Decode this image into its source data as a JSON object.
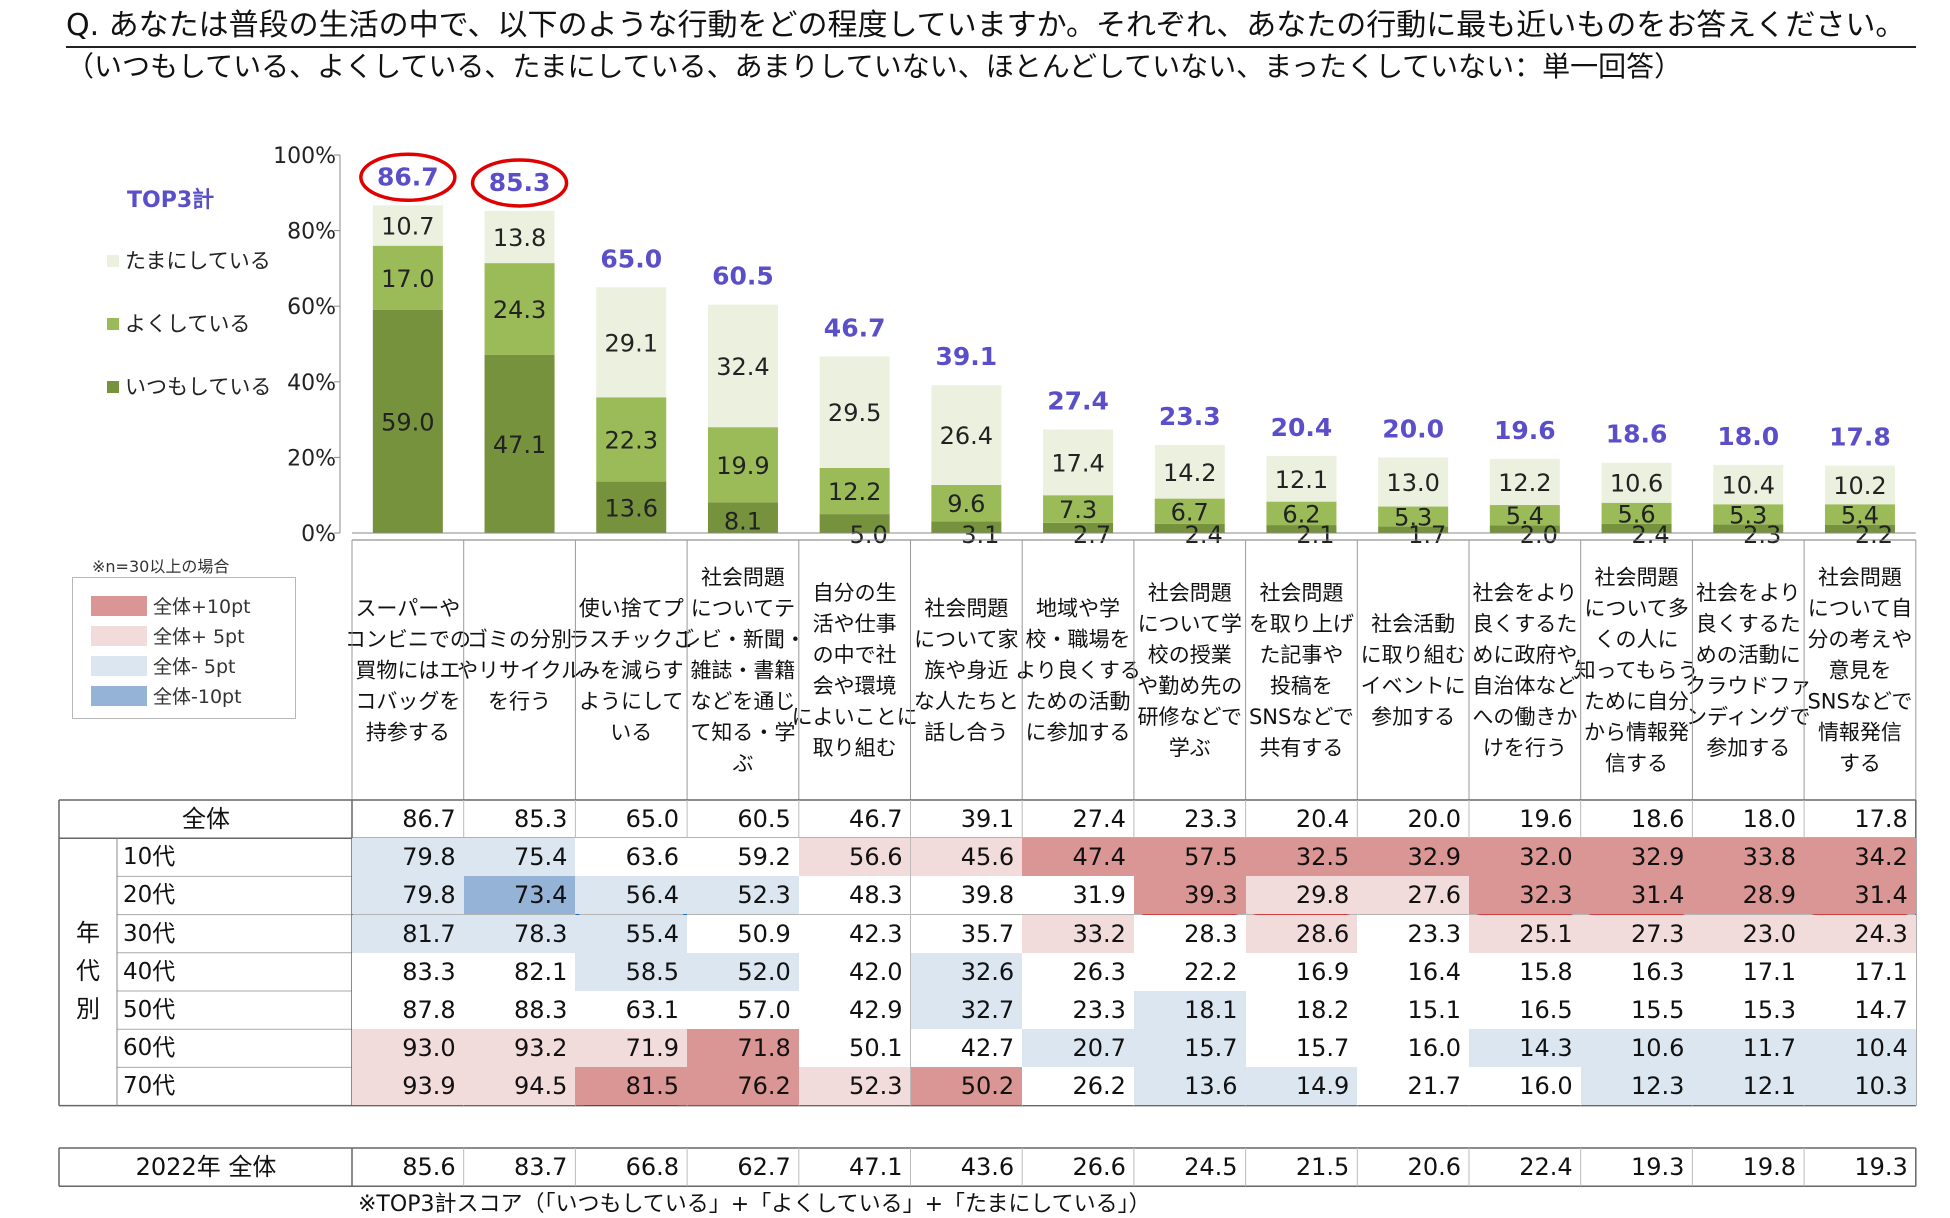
{
  "question": {
    "title": "Q. あなたは普段の生活の中で、以下のような行動をどの程度していますか。それぞれ、あなたの行動に最も近いものをお答えください。",
    "subtitle": "（いつもしている、よくしている、たまにしている、あまりしていない、ほとんどしていない、まったくしていない：単一回答）"
  },
  "legend": {
    "top3": "TOP3計",
    "items": [
      "たまにしている",
      "よくしている",
      "いつもしている"
    ]
  },
  "colors": {
    "always": "#76923c",
    "often": "#9bbb59",
    "sometimes": "#ebf1de",
    "top3_text": "#5b4fc9",
    "plus10": "#da9694",
    "plus5": "#f2dcdb",
    "minus5": "#dce6f1",
    "minus10": "#95b3d7",
    "highlight_red": "#e00000",
    "highlight_blue": "#1a6fc2"
  },
  "table_legend": {
    "note": "※n=30以上の場合",
    "items": [
      "全体+10pt",
      "全体+  5pt",
      "全体-  5pt",
      "全体-10pt"
    ]
  },
  "chart_data": {
    "type": "bar",
    "stacked": true,
    "ylim": [
      0,
      100
    ],
    "yticks": [
      "0%",
      "20%",
      "40%",
      "60%",
      "80%",
      "100%"
    ],
    "categories": [
      "スーパーやコンビニでの買物にはエコバッグを持参する",
      "ゴミの分別やリサイクルを行う",
      "使い捨てプラスチックごみを減らすようにしている",
      "社会問題についてテレビ・新聞・雑誌・書籍などを通じて知る・学ぶ",
      "自分の生活や仕事の中で社会や環境によいことに取り組む",
      "社会問題について家族や身近な人たちと話し合う",
      "地域や学校・職場をより良くするための活動に参加する",
      "社会問題について学校の授業や勤め先の研修などで学ぶ",
      "社会問題を取り上げた記事や投稿をSNSなどで共有する",
      "社会活動に取り組むイベントに参加する",
      "社会をより良くするために政府や自治体などへの働きかけを行う",
      "社会問題について多くの人に知ってもらうために自分から情報発信する",
      "社会をより良くするための活動にクラウドファンディングで参加する",
      "社会問題について自分の考えや意見をSNSなどで情報発信する"
    ],
    "category_lines": [
      [
        "スーパーや",
        "コンビニでの",
        "買物にはエ",
        "コバッグを",
        "持参する"
      ],
      [
        "ゴミの分別",
        "やリサイクル",
        "を行う"
      ],
      [
        "使い捨てプ",
        "ラスチックご",
        "みを減らす",
        "ようにして",
        "いる"
      ],
      [
        "社会問題",
        "についてテ",
        "レビ・新聞・",
        "雑誌・書籍",
        "などを通じ",
        "て知る・学",
        "ぶ"
      ],
      [
        "自分の生",
        "活や仕事",
        "の中で社",
        "会や環境",
        "によいことに",
        "取り組む"
      ],
      [
        "社会問題",
        "について家",
        "族や身近",
        "な人たちと",
        "話し合う"
      ],
      [
        "地域や学",
        "校・職場を",
        "より良くする",
        "ための活動",
        "に参加する"
      ],
      [
        "社会問題",
        "について学",
        "校の授業",
        "や勤め先の",
        "研修などで",
        "学ぶ"
      ],
      [
        "社会問題",
        "を取り上げ",
        "た記事や",
        "投稿を",
        "SNSなどで",
        "共有する"
      ],
      [
        "社会活動",
        "に取り組む",
        "イベントに",
        "参加する"
      ],
      [
        "社会をより",
        "良くするた",
        "めに政府や",
        "自治体など",
        "への働きか",
        "けを行う"
      ],
      [
        "社会問題",
        "について多",
        "くの人に",
        "知ってもらう",
        "ために自分",
        "から情報発",
        "信する"
      ],
      [
        "社会をより",
        "良くするた",
        "めの活動に",
        "クラウドファ",
        "ンディングで",
        "参加する"
      ],
      [
        "社会問題",
        "について自",
        "分の考えや",
        "意見を",
        "SNSなどで",
        "情報発信",
        "する"
      ]
    ],
    "series": [
      {
        "name": "いつもしている",
        "values": [
          59.0,
          47.1,
          13.6,
          8.1,
          5.0,
          3.1,
          2.7,
          2.4,
          2.1,
          1.7,
          2.0,
          2.4,
          2.3,
          2.2
        ]
      },
      {
        "name": "よくしている",
        "values": [
          17.0,
          24.3,
          22.3,
          19.9,
          12.2,
          9.6,
          7.3,
          6.7,
          6.2,
          5.3,
          5.4,
          5.6,
          5.3,
          5.4
        ]
      },
      {
        "name": "たまにしている",
        "values": [
          10.7,
          13.8,
          29.1,
          32.4,
          29.5,
          26.4,
          17.4,
          14.2,
          12.1,
          13.0,
          12.2,
          10.6,
          10.4,
          10.2
        ]
      }
    ],
    "top3": [
      "86.7",
      "85.3",
      "65.0",
      "60.5",
      "46.7",
      "39.1",
      "27.4",
      "23.3",
      "20.4",
      "20.0",
      "19.6",
      "18.6",
      "18.0",
      "17.8"
    ]
  },
  "table": {
    "overall_label": "全体",
    "group_label": "年代別",
    "overall": [
      "86.7",
      "85.3",
      "65.0",
      "60.5",
      "46.7",
      "39.1",
      "27.4",
      "23.3",
      "20.4",
      "20.0",
      "19.6",
      "18.6",
      "18.0",
      "17.8"
    ],
    "rows": [
      {
        "label": "10代",
        "values": [
          "79.8",
          "75.4",
          "63.6",
          "59.2",
          "56.6",
          "45.6",
          "47.4",
          "57.5",
          "32.5",
          "32.9",
          "32.0",
          "32.9",
          "33.8",
          "34.2"
        ],
        "shade": [
          "m5",
          "m5",
          "n",
          "n",
          "p5",
          "p5",
          "p10",
          "p10",
          "p10",
          "p10",
          "p10",
          "p10",
          "p10",
          "p10"
        ]
      },
      {
        "label": "20代",
        "values": [
          "79.8",
          "73.4",
          "56.4",
          "52.3",
          "48.3",
          "39.8",
          "31.9",
          "39.3",
          "29.8",
          "27.6",
          "32.3",
          "31.4",
          "28.9",
          "31.4"
        ],
        "shade": [
          "m5",
          "m10",
          "m5",
          "m5",
          "n",
          "n",
          "n",
          "p10",
          "p5",
          "p5",
          "p10",
          "p10",
          "p10",
          "p10"
        ]
      },
      {
        "label": "30代",
        "values": [
          "81.7",
          "78.3",
          "55.4",
          "50.9",
          "42.3",
          "35.7",
          "33.2",
          "28.3",
          "28.6",
          "23.3",
          "25.1",
          "27.3",
          "23.0",
          "24.3"
        ],
        "shade": [
          "m5",
          "m5",
          "m5",
          "n",
          "n",
          "n",
          "p5",
          "n",
          "p5",
          "n",
          "p5",
          "p5",
          "p5",
          "p5"
        ]
      },
      {
        "label": "40代",
        "values": [
          "83.3",
          "82.1",
          "58.5",
          "52.0",
          "42.0",
          "32.6",
          "26.3",
          "22.2",
          "16.9",
          "16.4",
          "15.8",
          "16.3",
          "17.1",
          "17.1"
        ],
        "shade": [
          "n",
          "n",
          "m5",
          "m5",
          "n",
          "m5",
          "n",
          "n",
          "n",
          "n",
          "n",
          "n",
          "n",
          "n"
        ]
      },
      {
        "label": "50代",
        "values": [
          "87.8",
          "88.3",
          "63.1",
          "57.0",
          "42.9",
          "32.7",
          "23.3",
          "18.1",
          "18.2",
          "15.1",
          "16.5",
          "15.5",
          "15.3",
          "14.7"
        ],
        "shade": [
          "n",
          "n",
          "n",
          "n",
          "n",
          "m5",
          "n",
          "m5",
          "n",
          "n",
          "n",
          "n",
          "n",
          "n"
        ]
      },
      {
        "label": "60代",
        "values": [
          "93.0",
          "93.2",
          "71.9",
          "71.8",
          "50.1",
          "42.7",
          "20.7",
          "15.7",
          "15.7",
          "16.0",
          "14.3",
          "10.6",
          "11.7",
          "10.4"
        ],
        "shade": [
          "p5",
          "p5",
          "p5",
          "p10",
          "n",
          "n",
          "m5",
          "m5",
          "n",
          "n",
          "m5",
          "m5",
          "m5",
          "m5"
        ]
      },
      {
        "label": "70代",
        "values": [
          "93.9",
          "94.5",
          "81.5",
          "76.2",
          "52.3",
          "50.2",
          "26.2",
          "13.6",
          "14.9",
          "21.7",
          "16.0",
          "12.3",
          "12.1",
          "10.3"
        ],
        "shade": [
          "p5",
          "p5",
          "p10",
          "p10",
          "p5",
          "p10",
          "n",
          "m5",
          "m5",
          "n",
          "n",
          "m5",
          "m5",
          "m5"
        ]
      }
    ],
    "year2022_label": "2022年 全体",
    "year2022": [
      "85.6",
      "83.7",
      "66.8",
      "62.7",
      "47.1",
      "43.6",
      "26.6",
      "24.5",
      "21.5",
      "20.6",
      "22.4",
      "19.3",
      "19.8",
      "19.3"
    ]
  },
  "footnote": "※TOP3計スコア（「いつもしている」+「よくしている」+「たまにしている」）"
}
